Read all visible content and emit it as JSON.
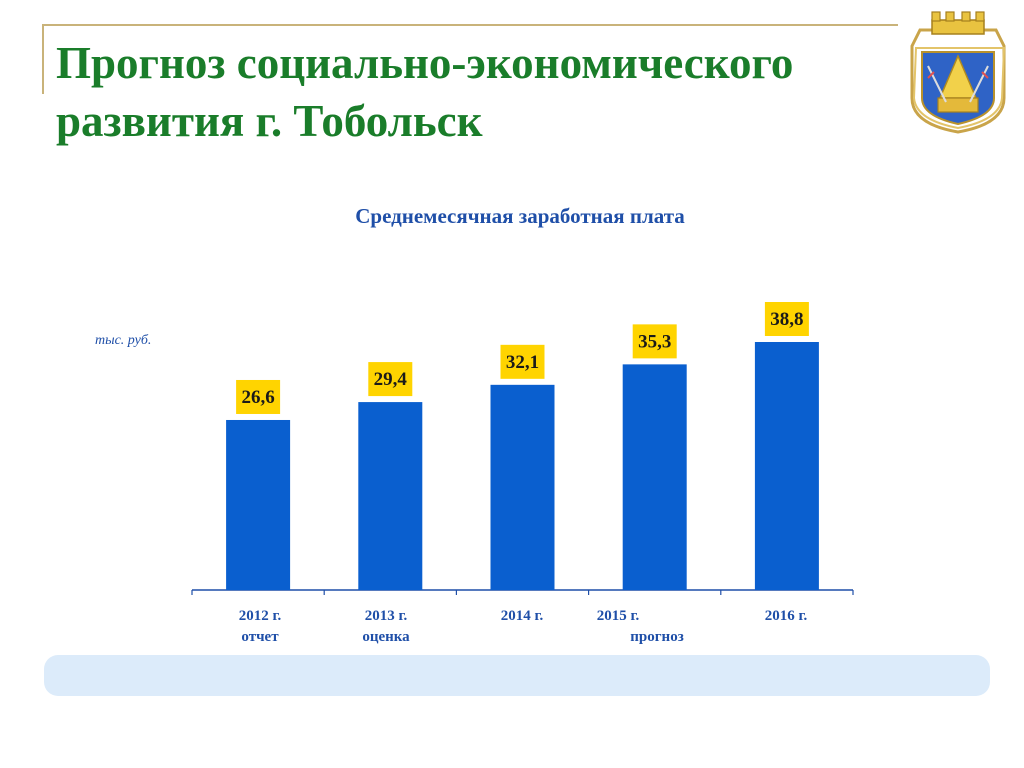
{
  "header": {
    "title_line1": "Прогноз социально-экономического",
    "title_line2": "развития г. Тобольск"
  },
  "emblem": {
    "icon": "tobolsk-coat-of-arms-icon"
  },
  "chart_data": {
    "type": "bar",
    "title": "Среднемесячная заработная плата",
    "unit_label": "тыс. руб.",
    "categories": [
      "2012 г.",
      "2013 г.",
      "2014 г.",
      "2015 г.",
      "2016 г."
    ],
    "values": [
      26.6,
      29.4,
      32.1,
      35.3,
      38.8
    ],
    "value_labels": [
      "26,6",
      "29,4",
      "32,1",
      "35,3",
      "38,8"
    ],
    "category_notes": {
      "report": "отчет",
      "estimate": "оценка",
      "forecast": "прогноз"
    },
    "ylim": [
      0,
      45
    ],
    "grid": false,
    "bar_color": "#0a5fcf",
    "label_bg_color": "#ffd400"
  },
  "colors": {
    "title": "#1a7d2a",
    "text": "#1f4fa8",
    "frame": "#c9b37a",
    "note_bar": "#dcebfa"
  }
}
